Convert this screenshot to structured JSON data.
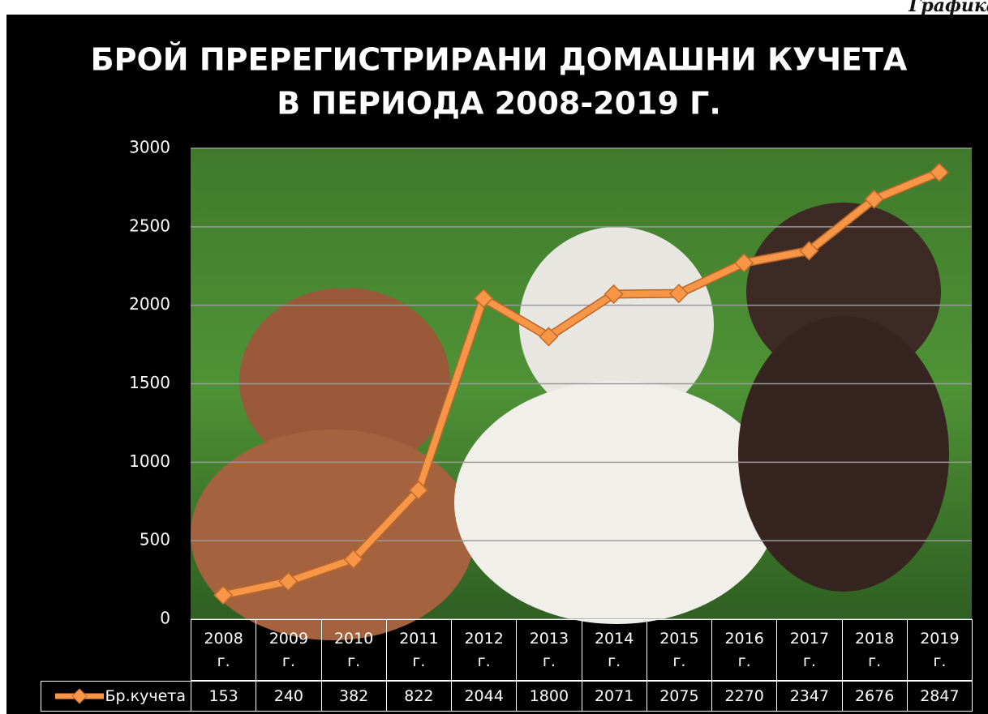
{
  "header": {
    "label": "Графика"
  },
  "chart_data": {
    "type": "line",
    "title": [
      "БРОЙ ПРЕРЕГИСТРИРАНИ ДОМАШНИ КУЧЕТА",
      "В ПЕРИОДА 2008-2019 Г."
    ],
    "categories": [
      "2008 г.",
      "2009 г.",
      "2010 г.",
      "2011 г.",
      "2012 г.",
      "2013 г.",
      "2014 г.",
      "2015 г.",
      "2016 г.",
      "2017 г.",
      "2018 г.",
      "2019 г."
    ],
    "series": [
      {
        "name": "Бр.кучета",
        "color": "#f79646",
        "values": [
          153,
          240,
          382,
          822,
          2044,
          1800,
          2071,
          2075,
          2270,
          2347,
          2676,
          2847
        ]
      }
    ],
    "ylim": [
      0,
      3000
    ],
    "yticks": [
      0,
      500,
      1000,
      1500,
      2000,
      2500,
      3000
    ],
    "grid": true,
    "data_table": true
  }
}
